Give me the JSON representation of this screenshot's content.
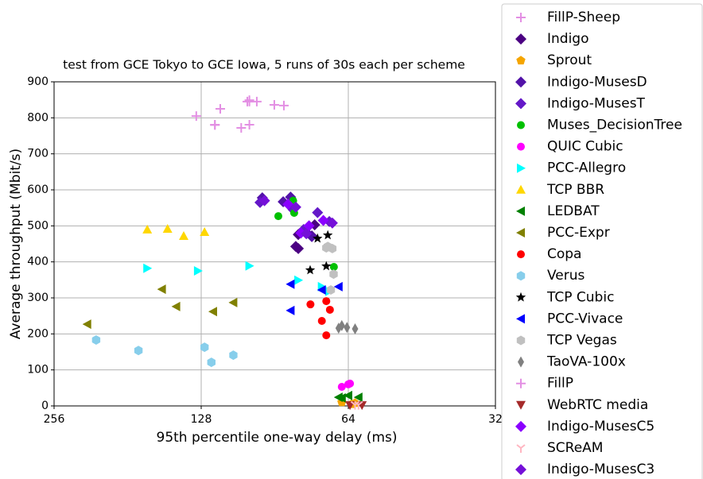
{
  "chart_data": {
    "type": "scatter",
    "title": "test from GCE Tokyo to GCE Iowa, 5 runs of 30s each per scheme",
    "xlabel": "95th percentile one-way delay (ms)",
    "ylabel": "Average throughput (Mbit/s)",
    "xscale": "log2",
    "xlim": [
      256,
      32
    ],
    "xticks": [
      256,
      128,
      64,
      32
    ],
    "ylim": [
      0,
      900
    ],
    "yticks": [
      0,
      100,
      200,
      300,
      400,
      500,
      600,
      700,
      800,
      900
    ],
    "grid": true,
    "legend": "outside right",
    "series": [
      {
        "name": "FillP-Sheep",
        "color": "#e38fe3",
        "marker": "plus",
        "x": [
          131,
          120,
          117,
          106,
          103,
          102,
          102,
          98.5,
          90.7,
          86.7
        ],
        "values": [
          805,
          781,
          825,
          772,
          845,
          849,
          781,
          845,
          836,
          834
        ]
      },
      {
        "name": "Indigo",
        "color": "#4b0082",
        "marker": "diamond",
        "x": [
          81,
          76,
          75,
          82,
          81
        ],
        "values": [
          476,
          472,
          503,
          443,
          437
        ]
      },
      {
        "name": "Sprout",
        "color": "#f5a500",
        "marker": "pentagon",
        "x": [
          66,
          63,
          62
        ],
        "values": [
          10,
          5,
          8
        ]
      },
      {
        "name": "Indigo-MusesD",
        "color": "#5212a8",
        "marker": "diamond",
        "x": [
          96,
          87,
          84,
          78,
          76
        ],
        "values": [
          578,
          567,
          580,
          482,
          470
        ]
      },
      {
        "name": "Indigo-MusesT",
        "color": "#6418c8",
        "marker": "diamond",
        "x": [
          97,
          83,
          79,
          74,
          70
        ],
        "values": [
          565,
          545,
          490,
          537,
          512
        ]
      },
      {
        "name": "Muses_DecisionTree",
        "color": "#00c000",
        "marker": "circle",
        "x": [
          89,
          83,
          82.6,
          68.5
        ],
        "values": [
          527,
          570,
          536,
          386
        ]
      },
      {
        "name": "QUIC Cubic",
        "color": "#ff00ff",
        "marker": "circle",
        "x": [
          66,
          64,
          63.5
        ],
        "values": [
          53,
          60,
          62
        ]
      },
      {
        "name": "PCC-Allegro",
        "color": "#00ffff",
        "marker": "triright",
        "x": [
          165,
          130,
          102,
          81,
          72.5,
          70
        ],
        "values": [
          382,
          375,
          389,
          349,
          331,
          318
        ]
      },
      {
        "name": "TCP BBR",
        "color": "#ffd700",
        "marker": "triup",
        "x": [
          165,
          150,
          139,
          126
        ],
        "values": [
          490,
          492,
          472,
          483
        ]
      },
      {
        "name": "LEDBAT",
        "color": "#008000",
        "marker": "trileft",
        "x": [
          67,
          64,
          61,
          66
        ],
        "values": [
          24,
          29,
          24,
          22
        ]
      },
      {
        "name": "PCC-Expr",
        "color": "#808000",
        "marker": "trileft",
        "x": [
          219,
          154,
          144,
          121,
          110
        ],
        "values": [
          227,
          324,
          276,
          262,
          287
        ]
      },
      {
        "name": "Copa",
        "color": "#ff0000",
        "marker": "circle",
        "x": [
          76.5,
          72.5,
          71,
          71,
          69.8
        ],
        "values": [
          282,
          236,
          291,
          196,
          267
        ]
      },
      {
        "name": "Verus",
        "color": "#87ceeb",
        "marker": "hexagon",
        "x": [
          210,
          172,
          126,
          122,
          110
        ],
        "values": [
          183,
          154,
          163,
          121,
          141
        ]
      },
      {
        "name": "TCP Cubic",
        "color": "#000000",
        "marker": "star",
        "x": [
          76.6,
          74,
          71,
          70.5
        ],
        "values": [
          377,
          465,
          388,
          474
        ]
      },
      {
        "name": "PCC-Vivace",
        "color": "#0000ff",
        "marker": "trileft",
        "x": [
          84,
          84,
          72.5,
          67
        ],
        "values": [
          338,
          265,
          322,
          331
        ]
      },
      {
        "name": "TCP Vegas",
        "color": "#c0c0c0",
        "marker": "hexagon",
        "x": [
          71,
          69,
          68.6,
          69.5,
          70.5
        ],
        "values": [
          439,
          437,
          366,
          322,
          443
        ]
      },
      {
        "name": "TaoVA-100x",
        "color": "#808080",
        "marker": "thindiamond",
        "x": [
          66,
          64.4,
          62,
          67
        ],
        "values": [
          223,
          218,
          214,
          216
        ]
      },
      {
        "name": "FillP",
        "color": "#e38fe3",
        "marker": "plus",
        "x": [
          102,
          120
        ],
        "values": [
          845,
          780
        ]
      },
      {
        "name": "WebRTC media",
        "color": "#a52a2a",
        "marker": "tridown",
        "x": [
          63.5,
          60
        ],
        "values": [
          2,
          2
        ]
      },
      {
        "name": "Indigo-MusesC5",
        "color": "#8a00ff",
        "marker": "diamond",
        "x": [
          85,
          80,
          72,
          77
        ],
        "values": [
          560,
          480,
          515,
          500
        ]
      },
      {
        "name": "SCReAM",
        "color": "#ffb6c1",
        "marker": "yshape",
        "x": [
          62,
          61
        ],
        "values": [
          3,
          3
        ]
      },
      {
        "name": "Indigo-MusesC3",
        "color": "#7510d8",
        "marker": "diamond",
        "x": [
          95,
          82,
          78,
          69
        ],
        "values": [
          570,
          552,
          478,
          508
        ]
      }
    ]
  }
}
